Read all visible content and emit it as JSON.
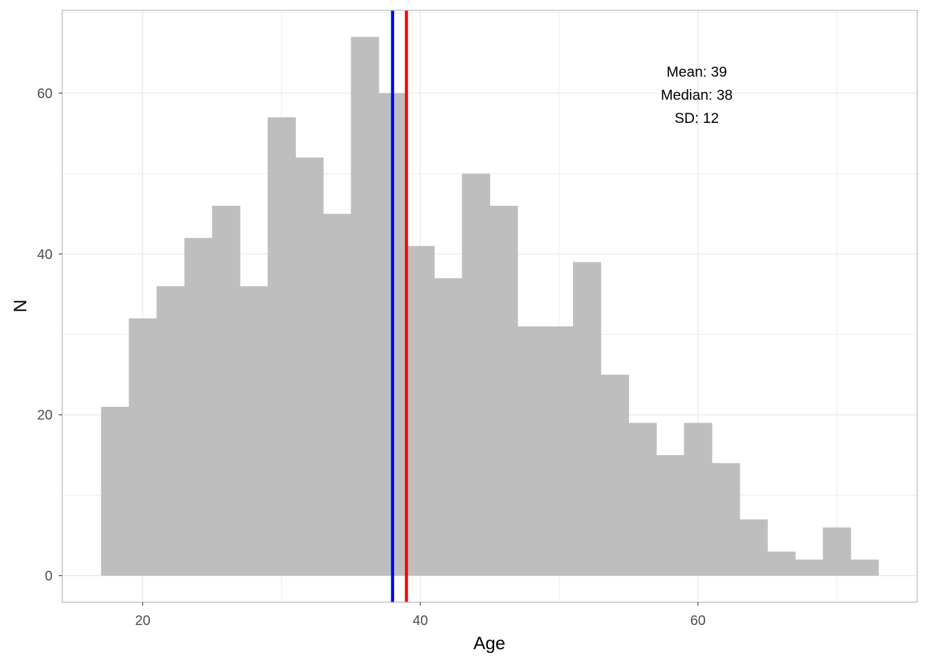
{
  "chart_data": {
    "type": "bar",
    "subtype": "histogram",
    "xlabel": "Age",
    "ylabel": "N",
    "xlim": [
      14.2,
      75.8
    ],
    "ylim": [
      -3.3,
      70.3
    ],
    "xticks": [
      20,
      40,
      60
    ],
    "yticks": [
      0,
      20,
      40,
      60
    ],
    "grid": true,
    "bin_width": 2,
    "bins_start": [
      17,
      19,
      21,
      23,
      25,
      27,
      29,
      31,
      33,
      35,
      37,
      39,
      41,
      43,
      45,
      47,
      49,
      51,
      53,
      55,
      57,
      59,
      61,
      63,
      65,
      67,
      69,
      71
    ],
    "values": [
      21,
      32,
      36,
      42,
      46,
      36,
      57,
      52,
      45,
      67,
      60,
      41,
      37,
      50,
      46,
      31,
      31,
      39,
      25,
      19,
      15,
      19,
      14,
      7,
      3,
      2,
      6,
      2
    ],
    "bar_color": "#bebebe",
    "reference_lines": [
      {
        "x": 38,
        "color": "#0000ff"
      },
      {
        "x": 39,
        "color": "#ff0000"
      }
    ],
    "annotation": [
      "Mean: 39",
      "Median: 38",
      "SD: 12"
    ]
  }
}
